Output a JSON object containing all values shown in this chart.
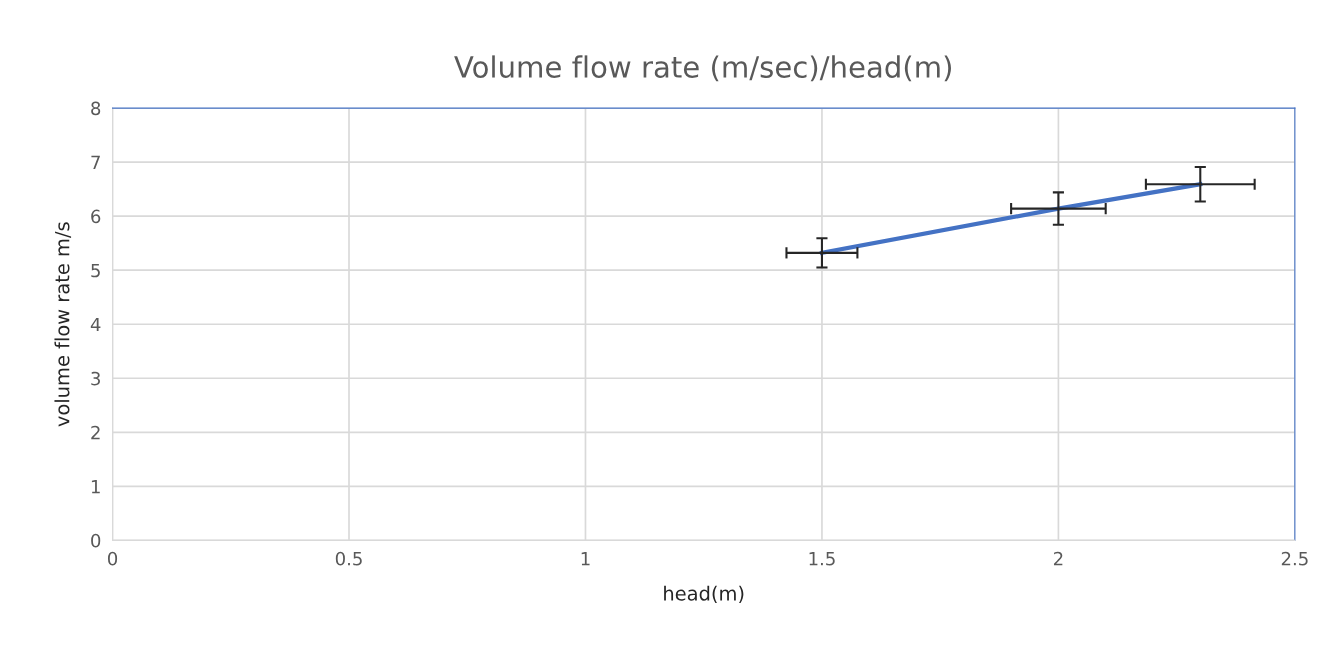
{
  "chart_data": {
    "type": "line",
    "title": "Volume flow rate (m/sec)/head(m)",
    "xlabel": "head(m)",
    "ylabel": "volume flow rate m/s",
    "x": [
      1.5,
      2.0,
      2.3
    ],
    "series": [
      {
        "color": "#4472c4",
        "values": [
          5.32,
          6.14,
          6.59
        ],
        "errors": [
          0.27,
          0.3,
          0.32
        ],
        "xerrors": [
          0.075,
          0.1,
          0.115
        ]
      }
    ],
    "xlim": [
      0,
      2.5
    ],
    "xticks": [
      0,
      0.5,
      1,
      1.5,
      2,
      2.5
    ],
    "ylim": [
      0,
      8
    ],
    "yticks": [
      0,
      1,
      2,
      3,
      4,
      5,
      6,
      7,
      8
    ],
    "grid": true,
    "marker": "none",
    "line_style": "solid"
  }
}
